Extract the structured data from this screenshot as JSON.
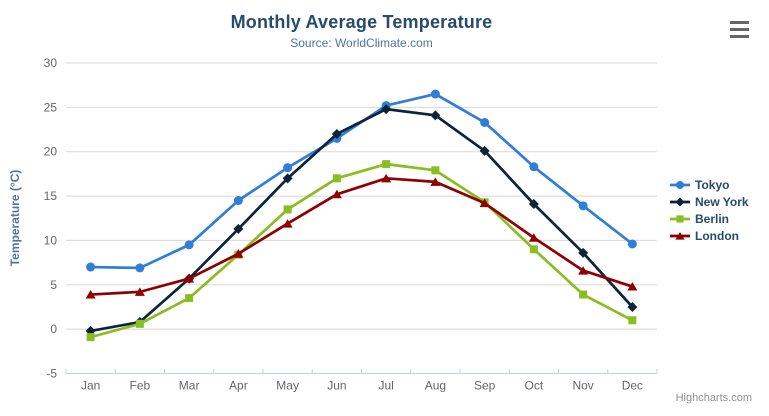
{
  "header": {
    "title": "Monthly Average Temperature",
    "subtitle": "Source: WorldClimate.com"
  },
  "chart_data": {
    "type": "line",
    "title": "Monthly Average Temperature",
    "subtitle": "Source: WorldClimate.com",
    "categories": [
      "Jan",
      "Feb",
      "Mar",
      "Apr",
      "May",
      "Jun",
      "Jul",
      "Aug",
      "Sep",
      "Oct",
      "Nov",
      "Dec"
    ],
    "series": [
      {
        "name": "Tokyo",
        "color": "#2f7ed8",
        "marker": "circle",
        "values": [
          7.0,
          6.9,
          9.5,
          14.5,
          18.2,
          21.5,
          25.2,
          26.5,
          23.3,
          18.3,
          13.9,
          9.6
        ]
      },
      {
        "name": "New York",
        "color": "#0d233a",
        "marker": "diamond",
        "values": [
          -0.2,
          0.8,
          5.7,
          11.3,
          17.0,
          22.0,
          24.8,
          24.1,
          20.1,
          14.1,
          8.6,
          2.5
        ]
      },
      {
        "name": "Berlin",
        "color": "#8bbc21",
        "marker": "square",
        "values": [
          -0.9,
          0.6,
          3.5,
          8.4,
          13.5,
          17.0,
          18.6,
          17.9,
          14.3,
          9.0,
          3.9,
          1.0
        ]
      },
      {
        "name": "London",
        "color": "#910000",
        "marker": "triangle",
        "values": [
          3.9,
          4.2,
          5.7,
          8.5,
          11.9,
          15.2,
          17.0,
          16.6,
          14.2,
          10.3,
          6.6,
          4.8
        ]
      }
    ],
    "xlabel": "",
    "ylabel": "Temperature (°C)",
    "ylim": [
      -5,
      30
    ],
    "yticks": [
      30,
      25,
      20,
      15,
      10,
      5,
      0,
      -5
    ],
    "grid": true,
    "legend_position": "right",
    "grid_color": "#d8d8d8",
    "axis_line_color": "#c0d0e0",
    "tick_label_color": "#666666"
  },
  "credits": {
    "label": "Highcharts.com"
  },
  "menu": {
    "icon": "hamburger-icon"
  }
}
